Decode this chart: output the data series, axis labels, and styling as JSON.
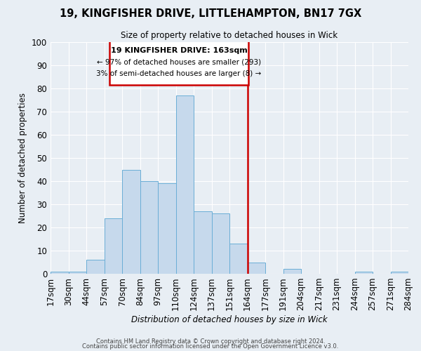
{
  "title_line1": "19, KINGFISHER DRIVE, LITTLEHAMPTON, BN17 7GX",
  "title_line2": "Size of property relative to detached houses in Wick",
  "xlabel": "Distribution of detached houses by size in Wick",
  "ylabel": "Number of detached properties",
  "bin_labels": [
    "17sqm",
    "30sqm",
    "44sqm",
    "57sqm",
    "70sqm",
    "84sqm",
    "97sqm",
    "110sqm",
    "124sqm",
    "137sqm",
    "151sqm",
    "164sqm",
    "177sqm",
    "191sqm",
    "204sqm",
    "217sqm",
    "231sqm",
    "244sqm",
    "257sqm",
    "271sqm",
    "284sqm"
  ],
  "bar_values": [
    1,
    1,
    6,
    24,
    45,
    40,
    39,
    77,
    27,
    26,
    13,
    5,
    0,
    2,
    0,
    0,
    0,
    1,
    0,
    1
  ],
  "bar_color": "#c6d9ec",
  "bar_edge_color": "#6aaed6",
  "vline_label": "164sqm",
  "vline_color": "#cc0000",
  "ylim_max": 100,
  "yticks": [
    0,
    10,
    20,
    30,
    40,
    50,
    60,
    70,
    80,
    90,
    100
  ],
  "annotation_title": "19 KINGFISHER DRIVE: 163sqm",
  "annotation_line1": "← 97% of detached houses are smaller (293)",
  "annotation_line2": "3% of semi-detached houses are larger (8) →",
  "ann_box_color": "#cc0000",
  "background_color": "#e8eef4",
  "grid_color": "#ffffff",
  "footer_line1": "Contains HM Land Registry data © Crown copyright and database right 2024.",
  "footer_line2": "Contains public sector information licensed under the Open Government Licence v3.0."
}
